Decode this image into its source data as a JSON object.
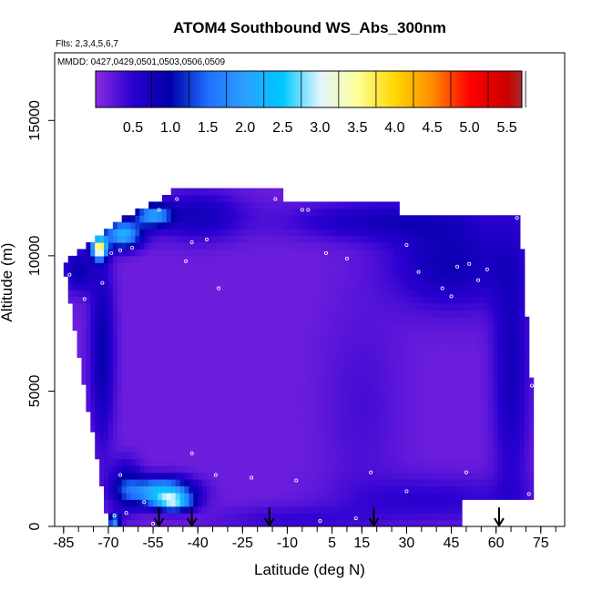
{
  "chart_data": {
    "type": "heatmap",
    "title": "ATOM4 Southbound WS_Abs_300nm",
    "flights_note": "Flts: 2,3,4,5,6,7",
    "dates_note": "MMDD: 0427,0429,0501,0503,0506,0509",
    "xlabel": "Latitude (deg N)",
    "ylabel": "Altitude (m)",
    "xlim": [
      -88,
      83
    ],
    "ylim": [
      0,
      17500
    ],
    "x_ticks": [
      -85,
      -70,
      -55,
      -40,
      -25,
      -10,
      5,
      15,
      30,
      45,
      60,
      75
    ],
    "x_tick_labels": [
      "-85",
      "-70",
      "-55",
      "-40",
      "-25",
      "-10",
      "5",
      "15",
      "30",
      "45",
      "60",
      "75"
    ],
    "x_minor_step": 5,
    "y_ticks": [
      0,
      5000,
      10000,
      15000
    ],
    "y_tick_labels": [
      "0",
      "5000",
      "10000",
      "15000"
    ],
    "colorbar": {
      "range": [
        0,
        5.7
      ],
      "ticks": [
        0.5,
        1.0,
        1.5,
        2.0,
        2.5,
        3.0,
        3.5,
        4.0,
        4.5,
        5.0,
        5.5
      ],
      "tick_labels": [
        "0.5",
        "1.0",
        "1.5",
        "2.0",
        "2.5",
        "3.0",
        "3.5",
        "4.0",
        "4.5",
        "5.0",
        "5.5"
      ],
      "stops": [
        {
          "v": 0.0,
          "c": "#8a2be2"
        },
        {
          "v": 0.5,
          "c": "#2a00d0"
        },
        {
          "v": 1.0,
          "c": "#0000a8"
        },
        {
          "v": 1.5,
          "c": "#1f6fff"
        },
        {
          "v": 2.0,
          "c": "#2aa0ff"
        },
        {
          "v": 2.5,
          "c": "#00c8ff"
        },
        {
          "v": 3.0,
          "c": "#e0f4ff"
        },
        {
          "v": 3.5,
          "c": "#ffff99"
        },
        {
          "v": 4.0,
          "c": "#ffd700"
        },
        {
          "v": 4.5,
          "c": "#ff8c00"
        },
        {
          "v": 5.0,
          "c": "#ff0000"
        },
        {
          "v": 5.5,
          "c": "#cc0000"
        },
        {
          "v": 5.7,
          "c": "#a52a2a"
        }
      ]
    },
    "background_value": 0.15,
    "coverage": {
      "bottom_left_lat": -70,
      "top_left_lat": -85,
      "bottom_right_lat": 72,
      "top_right_lat": 68,
      "bottom_right_alt": 1000,
      "top_alt": 12400,
      "left_edge": [
        {
          "lat": -85,
          "alt": 9700
        },
        {
          "lat": -83,
          "alt": 10000
        },
        {
          "lat": -75,
          "alt": 10500
        },
        {
          "lat": -68,
          "alt": 11200
        },
        {
          "lat": -56,
          "alt": 11900
        },
        {
          "lat": -48,
          "alt": 12400
        }
      ],
      "top_edge": [
        {
          "lat": -48,
          "alt": 12400
        },
        {
          "lat": -12,
          "alt": 12400
        },
        {
          "lat": -12,
          "alt": 11900
        },
        {
          "lat": 28,
          "alt": 11900
        },
        {
          "lat": 28,
          "alt": 11400
        },
        {
          "lat": 68,
          "alt": 11400
        }
      ],
      "right_edge": [
        {
          "lat": 68,
          "alt": 11400
        },
        {
          "lat": 72,
          "alt": 5000
        },
        {
          "lat": 72,
          "alt": 1000
        }
      ],
      "bottom_edge": [
        {
          "lat": 72,
          "alt": 1000
        },
        {
          "lat": 49,
          "alt": 1000
        },
        {
          "lat": 49,
          "alt": 0
        },
        {
          "lat": -70,
          "alt": 0
        }
      ]
    },
    "features": [
      {
        "type": "blob",
        "lat": -73,
        "alt": 10300,
        "rlat": 2.5,
        "ralt": 400,
        "value": 3.6
      },
      {
        "type": "blob",
        "lat": -65,
        "alt": 10800,
        "rlat": 6,
        "ralt": 500,
        "value": 2.2
      },
      {
        "type": "blob",
        "lat": -55,
        "alt": 11500,
        "rlat": 6,
        "ralt": 400,
        "value": 1.8
      },
      {
        "type": "blob",
        "lat": -52,
        "alt": 1300,
        "rlat": 10,
        "ralt": 500,
        "value": 2.4
      },
      {
        "type": "blob",
        "lat": -48,
        "alt": 900,
        "rlat": 6,
        "ralt": 300,
        "value": 2.0
      },
      {
        "type": "blob",
        "lat": -68,
        "alt": 200,
        "rlat": 2,
        "ralt": 250,
        "value": 2.0
      },
      {
        "type": "blob",
        "lat": -64,
        "alt": 1500,
        "rlat": 5,
        "ralt": 900,
        "value": 1.0
      },
      {
        "type": "blob",
        "lat": -72,
        "alt": 6500,
        "rlat": 4,
        "ralt": 3500,
        "value": 0.9
      },
      {
        "type": "blob",
        "lat": -80,
        "alt": 9500,
        "rlat": 5,
        "ralt": 800,
        "value": 0.9
      },
      {
        "type": "blob",
        "lat": 45,
        "alt": 9800,
        "rlat": 20,
        "ralt": 1700,
        "value": 0.85
      },
      {
        "type": "blob",
        "lat": 65,
        "alt": 6000,
        "rlat": 6,
        "ralt": 5000,
        "value": 0.75
      },
      {
        "type": "blob",
        "lat": 20,
        "alt": 11300,
        "rlat": 30,
        "ralt": 700,
        "value": 0.7
      },
      {
        "type": "blob",
        "lat": -40,
        "alt": 11500,
        "rlat": 15,
        "ralt": 900,
        "value": 0.75
      },
      {
        "type": "blob",
        "lat": 15,
        "alt": 4500,
        "rlat": 14,
        "ralt": 4000,
        "value": 0.35
      },
      {
        "type": "blob",
        "lat": 40,
        "alt": 1000,
        "rlat": 30,
        "ralt": 900,
        "value": 0.5
      },
      {
        "type": "blob",
        "lat": -10,
        "alt": 300,
        "rlat": 25,
        "ralt": 500,
        "value": 0.45
      }
    ],
    "points": [
      {
        "lat": -83,
        "alt": 9300
      },
      {
        "lat": -78,
        "alt": 8400
      },
      {
        "lat": -72,
        "alt": 9000
      },
      {
        "lat": -69,
        "alt": 10100
      },
      {
        "lat": -66,
        "alt": 10200
      },
      {
        "lat": -62,
        "alt": 10300
      },
      {
        "lat": -53,
        "alt": 11700
      },
      {
        "lat": -47,
        "alt": 12100
      },
      {
        "lat": -42,
        "alt": 10500
      },
      {
        "lat": -37,
        "alt": 10600
      },
      {
        "lat": -33,
        "alt": 8800
      },
      {
        "lat": -44,
        "alt": 9800
      },
      {
        "lat": -14,
        "alt": 12100
      },
      {
        "lat": -5,
        "alt": 11700
      },
      {
        "lat": -3,
        "alt": 11700
      },
      {
        "lat": 3,
        "alt": 10100
      },
      {
        "lat": 10,
        "alt": 9900
      },
      {
        "lat": 30,
        "alt": 10400
      },
      {
        "lat": 34,
        "alt": 9400
      },
      {
        "lat": 42,
        "alt": 8800
      },
      {
        "lat": 47,
        "alt": 9600
      },
      {
        "lat": 51,
        "alt": 9700
      },
      {
        "lat": 54,
        "alt": 9100
      },
      {
        "lat": 45,
        "alt": 8500
      },
      {
        "lat": 57,
        "alt": 9500
      },
      {
        "lat": 67,
        "alt": 11400
      },
      {
        "lat": 72,
        "alt": 5200
      },
      {
        "lat": 71,
        "alt": 1200
      },
      {
        "lat": 50,
        "alt": 2000
      },
      {
        "lat": 30,
        "alt": 1300
      },
      {
        "lat": 18,
        "alt": 2000
      },
      {
        "lat": -7,
        "alt": 1700
      },
      {
        "lat": -22,
        "alt": 1800
      },
      {
        "lat": -34,
        "alt": 1900
      },
      {
        "lat": -42,
        "alt": 2700
      },
      {
        "lat": -66,
        "alt": 1900
      },
      {
        "lat": -64,
        "alt": 500
      },
      {
        "lat": -68,
        "alt": 400
      },
      {
        "lat": -58,
        "alt": 900
      },
      {
        "lat": 1,
        "alt": 200
      },
      {
        "lat": 13,
        "alt": 300
      },
      {
        "lat": -55,
        "alt": 100
      }
    ],
    "arrows": [
      {
        "lat": -53,
        "from_alt": 700,
        "to_alt": 0
      },
      {
        "lat": -42,
        "from_alt": 700,
        "to_alt": 0
      },
      {
        "lat": -16,
        "from_alt": 700,
        "to_alt": 0
      },
      {
        "lat": 19,
        "from_alt": 700,
        "to_alt": 0
      },
      {
        "lat": 61,
        "from_alt": 700,
        "to_alt": 0
      }
    ]
  }
}
